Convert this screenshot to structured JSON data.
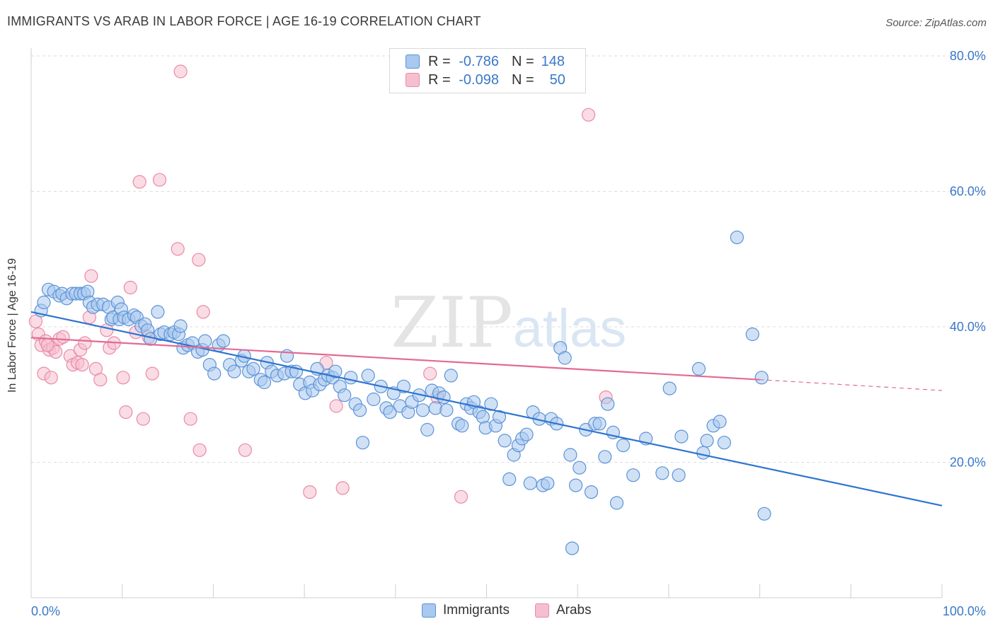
{
  "header": {
    "title": "IMMIGRANTS VS ARAB IN LABOR FORCE | AGE 16-19 CORRELATION CHART",
    "source": "Source: ZipAtlas.com"
  },
  "watermark": {
    "zip": "ZIP",
    "atlas": "atlas"
  },
  "legend": {
    "rows": [
      {
        "r_label": "R =",
        "r_value": "-0.786",
        "n_label": "N =",
        "n_value": "148"
      },
      {
        "r_label": "R =",
        "r_value": "-0.098",
        "n_label": "N =",
        "n_value": "50"
      }
    ]
  },
  "bottom_legend": {
    "immigrants": "Immigrants",
    "arabs": "Arabs"
  },
  "colors": {
    "immigrants_fill": "#a9c8ef",
    "immigrants_stroke": "#5b93d6",
    "immigrants_line": "#2f74d0",
    "arabs_fill": "#f6bfd0",
    "arabs_stroke": "#e98aa8",
    "arabs_line": "#e36a93",
    "tick_text": "#3a78c8",
    "grid": "#dddddd"
  },
  "chart_data": {
    "type": "scatter",
    "title": "IMMIGRANTS VS ARAB IN LABOR FORCE | AGE 16-19 CORRELATION CHART",
    "xlabel": "",
    "ylabel": "In Labor Force | Age 16-19",
    "xlim": [
      0,
      100
    ],
    "ylim": [
      0,
      80
    ],
    "x_tick_labels": [
      "0.0%",
      "100.0%"
    ],
    "y_ticks": [
      20,
      40,
      60,
      80
    ],
    "y_tick_labels": [
      "20.0%",
      "40.0%",
      "60.0%",
      "80.0%"
    ],
    "grid": true,
    "legend_position": "top-center",
    "series": [
      {
        "name": "Immigrants",
        "r": -0.786,
        "n": 148,
        "trend": {
          "x": [
            0,
            100
          ],
          "y": [
            42.2,
            13.6
          ]
        },
        "points": [
          [
            1.1,
            42.4
          ],
          [
            1.4,
            43.6
          ],
          [
            1.9,
            45.5
          ],
          [
            2.5,
            45.2
          ],
          [
            3.1,
            44.6
          ],
          [
            3.4,
            44.9
          ],
          [
            3.9,
            44.2
          ],
          [
            4.5,
            44.9
          ],
          [
            4.9,
            44.9
          ],
          [
            5.4,
            44.9
          ],
          [
            5.8,
            44.9
          ],
          [
            6.2,
            45.2
          ],
          [
            6.4,
            43.6
          ],
          [
            6.8,
            42.9
          ],
          [
            7.3,
            43.3
          ],
          [
            7.9,
            43.3
          ],
          [
            8.5,
            42.9
          ],
          [
            8.8,
            41.1
          ],
          [
            9.0,
            41.4
          ],
          [
            9.5,
            43.6
          ],
          [
            9.7,
            41.1
          ],
          [
            9.9,
            42.6
          ],
          [
            10.2,
            41.4
          ],
          [
            10.7,
            41.1
          ],
          [
            11.3,
            41.7
          ],
          [
            11.6,
            41.4
          ],
          [
            12.1,
            40.1
          ],
          [
            12.5,
            40.4
          ],
          [
            12.8,
            39.5
          ],
          [
            13.1,
            38.2
          ],
          [
            13.9,
            42.2
          ],
          [
            14.2,
            38.9
          ],
          [
            14.6,
            39.2
          ],
          [
            15.3,
            38.9
          ],
          [
            15.7,
            39.2
          ],
          [
            16.2,
            38.9
          ],
          [
            16.4,
            40.1
          ],
          [
            16.7,
            36.9
          ],
          [
            17.2,
            37.3
          ],
          [
            17.7,
            37.6
          ],
          [
            18.3,
            36.3
          ],
          [
            18.8,
            36.6
          ],
          [
            19.1,
            37.9
          ],
          [
            19.6,
            34.4
          ],
          [
            20.1,
            33.1
          ],
          [
            20.6,
            37.3
          ],
          [
            21.1,
            37.9
          ],
          [
            21.8,
            34.4
          ],
          [
            22.3,
            33.4
          ],
          [
            23.1,
            35.0
          ],
          [
            23.4,
            35.7
          ],
          [
            23.9,
            33.4
          ],
          [
            24.4,
            33.8
          ],
          [
            25.2,
            32.2
          ],
          [
            25.6,
            31.8
          ],
          [
            25.9,
            34.7
          ],
          [
            26.4,
            33.4
          ],
          [
            27.0,
            32.8
          ],
          [
            27.8,
            33.1
          ],
          [
            28.1,
            35.7
          ],
          [
            28.6,
            33.4
          ],
          [
            29.1,
            33.4
          ],
          [
            29.5,
            31.5
          ],
          [
            30.1,
            30.2
          ],
          [
            30.6,
            31.8
          ],
          [
            30.9,
            30.6
          ],
          [
            31.4,
            33.8
          ],
          [
            31.7,
            31.5
          ],
          [
            32.2,
            32.2
          ],
          [
            32.6,
            32.8
          ],
          [
            33.1,
            32.5
          ],
          [
            33.4,
            33.4
          ],
          [
            33.9,
            31.2
          ],
          [
            34.4,
            29.9
          ],
          [
            35.1,
            32.5
          ],
          [
            35.6,
            28.6
          ],
          [
            36.1,
            27.7
          ],
          [
            36.4,
            22.9
          ],
          [
            37.0,
            32.8
          ],
          [
            37.6,
            29.3
          ],
          [
            38.4,
            31.2
          ],
          [
            39.0,
            28.0
          ],
          [
            39.4,
            27.4
          ],
          [
            39.8,
            30.2
          ],
          [
            40.5,
            28.3
          ],
          [
            40.9,
            31.2
          ],
          [
            41.4,
            27.4
          ],
          [
            41.8,
            28.9
          ],
          [
            42.6,
            29.9
          ],
          [
            43.0,
            27.7
          ],
          [
            43.5,
            24.8
          ],
          [
            44.0,
            30.6
          ],
          [
            44.4,
            28.0
          ],
          [
            44.8,
            30.2
          ],
          [
            45.3,
            29.6
          ],
          [
            45.6,
            27.7
          ],
          [
            46.1,
            32.8
          ],
          [
            46.9,
            25.7
          ],
          [
            47.3,
            25.4
          ],
          [
            47.8,
            28.6
          ],
          [
            48.3,
            28.0
          ],
          [
            48.6,
            28.9
          ],
          [
            49.2,
            27.4
          ],
          [
            49.6,
            26.7
          ],
          [
            49.9,
            25.1
          ],
          [
            50.5,
            28.6
          ],
          [
            51.0,
            25.4
          ],
          [
            51.4,
            26.7
          ],
          [
            52.0,
            23.2
          ],
          [
            52.5,
            17.5
          ],
          [
            53.0,
            21.1
          ],
          [
            53.5,
            22.5
          ],
          [
            53.9,
            23.5
          ],
          [
            54.4,
            24.1
          ],
          [
            54.8,
            16.9
          ],
          [
            55.1,
            27.4
          ],
          [
            55.8,
            26.4
          ],
          [
            56.2,
            16.6
          ],
          [
            56.7,
            16.9
          ],
          [
            57.1,
            26.4
          ],
          [
            57.7,
            25.7
          ],
          [
            58.1,
            36.9
          ],
          [
            58.6,
            35.4
          ],
          [
            59.2,
            21.1
          ],
          [
            59.8,
            16.6
          ],
          [
            60.2,
            19.2
          ],
          [
            60.9,
            24.8
          ],
          [
            61.5,
            15.6
          ],
          [
            61.9,
            25.7
          ],
          [
            62.4,
            25.7
          ],
          [
            63.0,
            20.8
          ],
          [
            63.3,
            28.6
          ],
          [
            63.9,
            24.4
          ],
          [
            64.3,
            14.0
          ],
          [
            65.0,
            22.5
          ],
          [
            66.1,
            18.1
          ],
          [
            67.5,
            23.5
          ],
          [
            69.3,
            18.4
          ],
          [
            71.1,
            18.1
          ],
          [
            71.4,
            23.8
          ],
          [
            73.3,
            33.8
          ],
          [
            73.8,
            21.4
          ],
          [
            74.2,
            23.2
          ],
          [
            74.9,
            25.4
          ],
          [
            75.6,
            26.0
          ],
          [
            76.1,
            22.9
          ],
          [
            77.5,
            53.2
          ],
          [
            79.2,
            38.9
          ],
          [
            80.2,
            32.5
          ],
          [
            80.5,
            12.4
          ],
          [
            70.1,
            30.9
          ],
          [
            59.4,
            7.3
          ]
        ]
      },
      {
        "name": "Arabs",
        "r": -0.098,
        "n": 50,
        "trend": {
          "x": [
            0,
            80
          ],
          "y": [
            38.4,
            32.2
          ]
        },
        "trend_dashed_extension": {
          "x": [
            80,
            100
          ],
          "y": [
            32.2,
            30.6
          ]
        },
        "points": [
          [
            0.5,
            40.8
          ],
          [
            0.8,
            38.9
          ],
          [
            1.1,
            37.3
          ],
          [
            1.4,
            33.1
          ],
          [
            1.6,
            37.9
          ],
          [
            2.0,
            36.6
          ],
          [
            2.2,
            32.5
          ],
          [
            2.4,
            36.9
          ],
          [
            2.7,
            36.3
          ],
          [
            3.1,
            38.2
          ],
          [
            3.5,
            38.5
          ],
          [
            4.3,
            35.7
          ],
          [
            4.6,
            34.4
          ],
          [
            5.1,
            34.7
          ],
          [
            5.4,
            36.6
          ],
          [
            5.9,
            37.6
          ],
          [
            6.4,
            41.4
          ],
          [
            6.6,
            47.5
          ],
          [
            7.1,
            33.8
          ],
          [
            7.6,
            32.2
          ],
          [
            8.3,
            39.5
          ],
          [
            8.6,
            36.9
          ],
          [
            9.1,
            37.6
          ],
          [
            10.1,
            32.5
          ],
          [
            10.4,
            27.4
          ],
          [
            10.9,
            45.8
          ],
          [
            11.5,
            39.2
          ],
          [
            11.9,
            61.4
          ],
          [
            12.3,
            26.4
          ],
          [
            12.9,
            38.5
          ],
          [
            13.3,
            33.1
          ],
          [
            14.1,
            61.7
          ],
          [
            16.1,
            51.5
          ],
          [
            16.4,
            77.7
          ],
          [
            17.5,
            26.4
          ],
          [
            18.4,
            49.9
          ],
          [
            18.9,
            42.2
          ],
          [
            18.5,
            21.8
          ],
          [
            23.5,
            21.8
          ],
          [
            30.6,
            15.6
          ],
          [
            32.4,
            34.7
          ],
          [
            33.5,
            28.3
          ],
          [
            34.2,
            16.2
          ],
          [
            43.8,
            33.1
          ],
          [
            44.6,
            29.6
          ],
          [
            47.2,
            14.9
          ],
          [
            61.2,
            71.3
          ],
          [
            63.1,
            29.6
          ],
          [
            1.8,
            37.3
          ],
          [
            5.6,
            34.4
          ]
        ]
      }
    ]
  }
}
